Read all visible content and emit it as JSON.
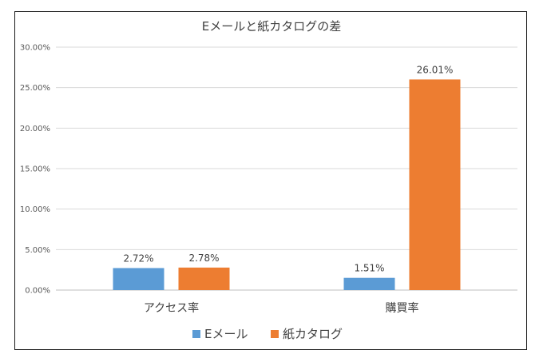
{
  "chart_data": {
    "type": "bar",
    "title": "Eメールと紙カタログの差",
    "categories": [
      "アクセス率",
      "購買率"
    ],
    "series": [
      {
        "name": "Eメール",
        "color": "#5B9BD5",
        "values": [
          2.72,
          1.51
        ],
        "labels": [
          "2.72%",
          "1.51%"
        ]
      },
      {
        "name": "紙カタログ",
        "color": "#ED7D31",
        "values": [
          2.78,
          26.01
        ],
        "labels": [
          "2.78%",
          "26.01%"
        ]
      }
    ],
    "ylim": [
      0,
      30
    ],
    "yticks": [
      "0.00%",
      "5.00%",
      "10.00%",
      "15.00%",
      "20.00%",
      "25.00%",
      "30.00%"
    ],
    "grid": true,
    "legend": "bottom"
  }
}
